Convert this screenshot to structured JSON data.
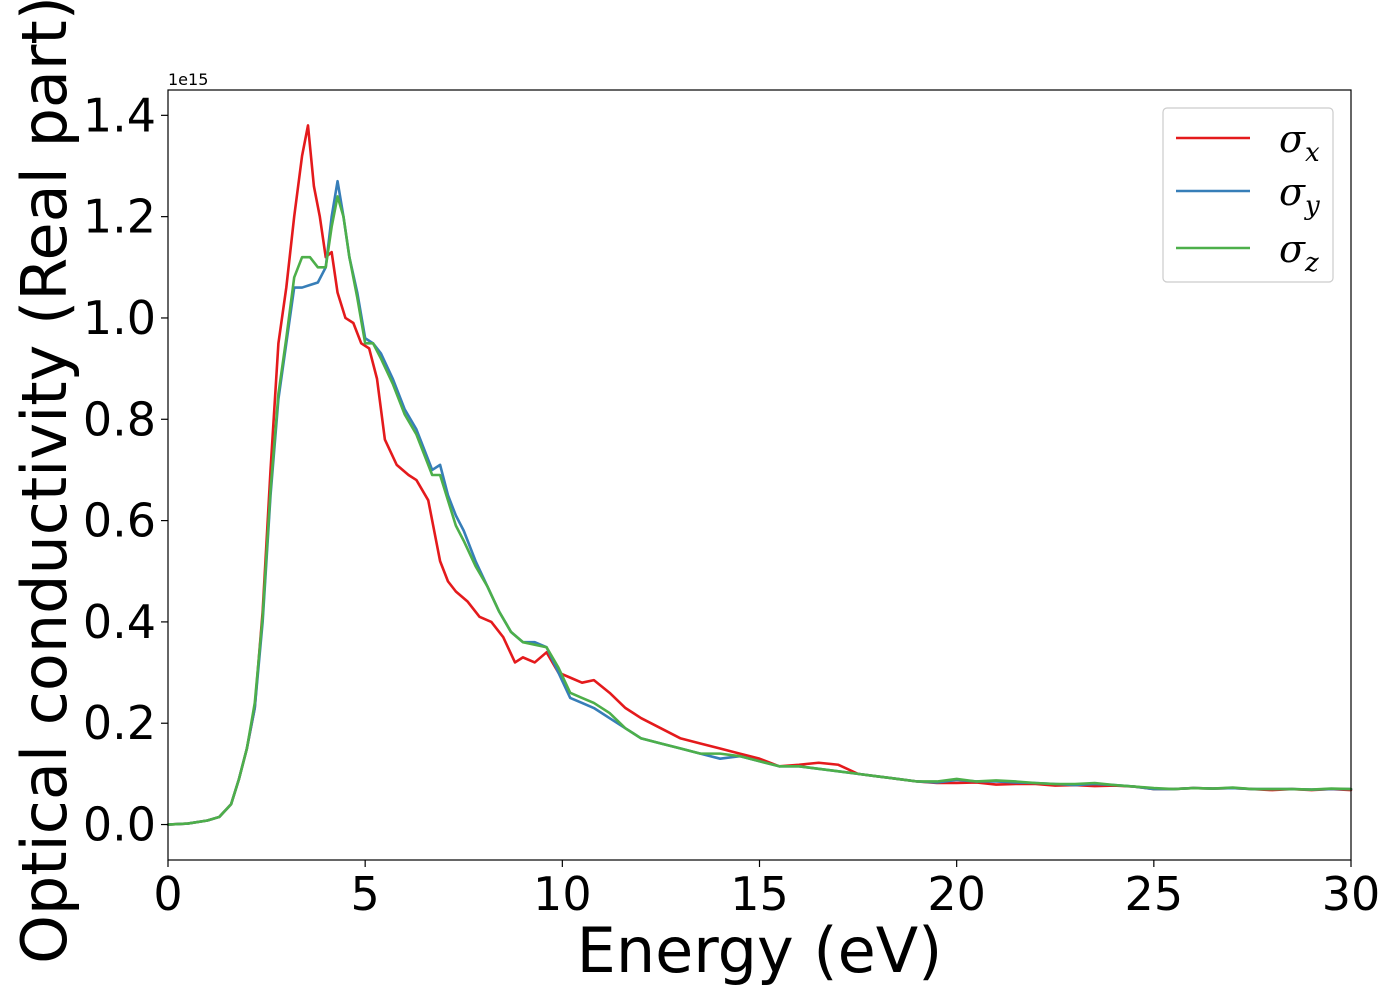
{
  "chart_data": {
    "type": "line",
    "title": "",
    "xlabel": "Energy (eV)",
    "ylabel": "Optical conductivity (Real part)",
    "y_offset_text": "1e15",
    "xlim": [
      0,
      30
    ],
    "ylim": [
      -0.07,
      1.45
    ],
    "x_ticks": [
      0,
      5,
      10,
      15,
      20,
      25,
      30
    ],
    "x_tick_labels": [
      "0",
      "5",
      "10",
      "15",
      "20",
      "25",
      "30"
    ],
    "y_ticks": [
      0.0,
      0.2,
      0.4,
      0.6,
      0.8,
      1.0,
      1.2,
      1.4
    ],
    "y_tick_labels": [
      "0.0",
      "0.2",
      "0.4",
      "0.6",
      "0.8",
      "1.0",
      "1.2",
      "1.4"
    ],
    "grid": false,
    "legend_position": "top-right",
    "series": [
      {
        "name": "σx",
        "symbol": "σ",
        "subscript": "x",
        "color": "#e41a1c",
        "x": [
          0,
          0.5,
          1,
          1.3,
          1.6,
          1.8,
          2,
          2.2,
          2.4,
          2.6,
          2.8,
          3,
          3.2,
          3.4,
          3.55,
          3.7,
          3.85,
          4,
          4.15,
          4.3,
          4.5,
          4.7,
          4.9,
          5.1,
          5.3,
          5.5,
          5.8,
          6.1,
          6.3,
          6.6,
          6.9,
          7.1,
          7.3,
          7.6,
          7.9,
          8.2,
          8.5,
          8.8,
          9,
          9.3,
          9.6,
          9.9,
          10.2,
          10.5,
          10.8,
          11.2,
          11.6,
          12,
          12.5,
          13,
          13.5,
          14,
          14.5,
          15,
          15.5,
          16,
          16.5,
          17,
          17.5,
          18,
          18.5,
          19,
          19.5,
          20,
          20.5,
          21,
          21.5,
          22,
          22.5,
          23,
          23.5,
          24,
          24.5,
          25,
          25.5,
          26,
          26.5,
          27,
          27.5,
          28,
          28.5,
          29,
          29.5,
          30
        ],
        "y": [
          0,
          0.002,
          0.008,
          0.015,
          0.04,
          0.09,
          0.15,
          0.23,
          0.42,
          0.7,
          0.95,
          1.06,
          1.2,
          1.32,
          1.38,
          1.26,
          1.2,
          1.12,
          1.13,
          1.05,
          1.0,
          0.99,
          0.95,
          0.94,
          0.88,
          0.76,
          0.71,
          0.69,
          0.68,
          0.64,
          0.52,
          0.48,
          0.46,
          0.44,
          0.41,
          0.4,
          0.37,
          0.32,
          0.33,
          0.32,
          0.34,
          0.3,
          0.29,
          0.28,
          0.285,
          0.26,
          0.23,
          0.21,
          0.19,
          0.17,
          0.16,
          0.15,
          0.14,
          0.13,
          0.115,
          0.118,
          0.122,
          0.118,
          0.1,
          0.095,
          0.09,
          0.085,
          0.082,
          0.082,
          0.083,
          0.079,
          0.08,
          0.08,
          0.077,
          0.078,
          0.076,
          0.077,
          0.075,
          0.07,
          0.07,
          0.072,
          0.071,
          0.072,
          0.07,
          0.068,
          0.07,
          0.068,
          0.07,
          0.068
        ]
      },
      {
        "name": "σy",
        "symbol": "σ",
        "subscript": "y",
        "color": "#377eb8",
        "x": [
          0,
          0.5,
          1,
          1.3,
          1.6,
          1.8,
          2,
          2.2,
          2.4,
          2.6,
          2.8,
          3,
          3.2,
          3.4,
          3.6,
          3.8,
          4,
          4.15,
          4.3,
          4.45,
          4.6,
          4.8,
          5,
          5.2,
          5.4,
          5.7,
          6,
          6.3,
          6.5,
          6.7,
          6.9,
          7.1,
          7.3,
          7.5,
          7.8,
          8.1,
          8.4,
          8.7,
          9,
          9.3,
          9.6,
          9.9,
          10.2,
          10.5,
          10.8,
          11.2,
          11.6,
          12,
          12.5,
          13,
          13.5,
          14,
          14.5,
          15,
          15.5,
          16,
          16.5,
          17,
          17.5,
          18,
          18.5,
          19,
          19.5,
          20,
          20.5,
          21,
          21.5,
          22,
          22.5,
          23,
          23.5,
          24,
          24.5,
          25,
          25.5,
          26,
          26.5,
          27,
          27.5,
          28,
          28.5,
          29,
          29.5,
          30
        ],
        "y": [
          0,
          0.002,
          0.008,
          0.015,
          0.04,
          0.09,
          0.15,
          0.23,
          0.4,
          0.65,
          0.84,
          0.95,
          1.06,
          1.06,
          1.065,
          1.07,
          1.1,
          1.2,
          1.27,
          1.2,
          1.12,
          1.05,
          0.96,
          0.95,
          0.93,
          0.88,
          0.82,
          0.78,
          0.74,
          0.7,
          0.71,
          0.65,
          0.61,
          0.58,
          0.52,
          0.47,
          0.42,
          0.38,
          0.36,
          0.36,
          0.35,
          0.3,
          0.25,
          0.24,
          0.23,
          0.21,
          0.19,
          0.17,
          0.16,
          0.15,
          0.14,
          0.13,
          0.135,
          0.125,
          0.115,
          0.115,
          0.11,
          0.105,
          0.1,
          0.095,
          0.09,
          0.085,
          0.083,
          0.088,
          0.085,
          0.085,
          0.083,
          0.082,
          0.08,
          0.078,
          0.08,
          0.078,
          0.075,
          0.07,
          0.07,
          0.072,
          0.071,
          0.072,
          0.07,
          0.07,
          0.07,
          0.069,
          0.07,
          0.07
        ]
      },
      {
        "name": "σz",
        "symbol": "σ",
        "subscript": "z",
        "color": "#4daf4a",
        "x": [
          0,
          0.5,
          1,
          1.3,
          1.6,
          1.8,
          2,
          2.2,
          2.4,
          2.6,
          2.8,
          3,
          3.2,
          3.4,
          3.6,
          3.8,
          4,
          4.15,
          4.3,
          4.45,
          4.6,
          4.8,
          5,
          5.2,
          5.4,
          5.7,
          6,
          6.3,
          6.5,
          6.7,
          6.9,
          7.1,
          7.3,
          7.5,
          7.8,
          8.1,
          8.4,
          8.7,
          9,
          9.3,
          9.6,
          9.9,
          10.2,
          10.5,
          10.8,
          11.2,
          11.6,
          12,
          12.5,
          13,
          13.5,
          14,
          14.5,
          15,
          15.5,
          16,
          16.5,
          17,
          17.5,
          18,
          18.5,
          19,
          19.5,
          20,
          20.5,
          21,
          21.5,
          22,
          22.5,
          23,
          23.5,
          24,
          24.5,
          25,
          25.5,
          26,
          26.5,
          27,
          27.5,
          28,
          28.5,
          29,
          29.5,
          30
        ],
        "y": [
          0,
          0.002,
          0.008,
          0.015,
          0.04,
          0.09,
          0.15,
          0.24,
          0.41,
          0.66,
          0.85,
          0.96,
          1.08,
          1.12,
          1.12,
          1.1,
          1.1,
          1.18,
          1.24,
          1.2,
          1.12,
          1.04,
          0.95,
          0.95,
          0.92,
          0.87,
          0.81,
          0.77,
          0.73,
          0.69,
          0.69,
          0.64,
          0.59,
          0.56,
          0.51,
          0.47,
          0.42,
          0.38,
          0.36,
          0.355,
          0.35,
          0.31,
          0.26,
          0.25,
          0.24,
          0.22,
          0.19,
          0.17,
          0.16,
          0.15,
          0.14,
          0.14,
          0.135,
          0.125,
          0.115,
          0.115,
          0.11,
          0.105,
          0.1,
          0.095,
          0.09,
          0.085,
          0.085,
          0.09,
          0.085,
          0.087,
          0.085,
          0.082,
          0.08,
          0.08,
          0.082,
          0.078,
          0.075,
          0.072,
          0.07,
          0.072,
          0.071,
          0.073,
          0.07,
          0.07,
          0.07,
          0.069,
          0.071,
          0.07
        ]
      }
    ]
  }
}
